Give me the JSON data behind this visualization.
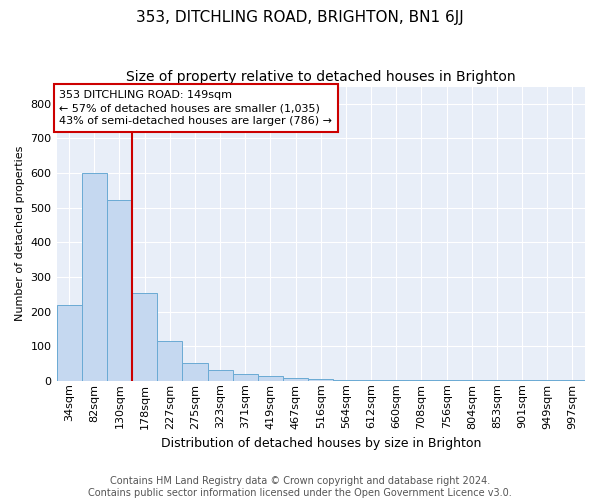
{
  "title": "353, DITCHLING ROAD, BRIGHTON, BN1 6JJ",
  "subtitle": "Size of property relative to detached houses in Brighton",
  "xlabel": "Distribution of detached houses by size in Brighton",
  "ylabel": "Number of detached properties",
  "footer_line1": "Contains HM Land Registry data © Crown copyright and database right 2024.",
  "footer_line2": "Contains public sector information licensed under the Open Government Licence v3.0.",
  "bins": [
    "34sqm",
    "82sqm",
    "130sqm",
    "178sqm",
    "227sqm",
    "275sqm",
    "323sqm",
    "371sqm",
    "419sqm",
    "467sqm",
    "516sqm",
    "564sqm",
    "612sqm",
    "660sqm",
    "708sqm",
    "756sqm",
    "804sqm",
    "853sqm",
    "901sqm",
    "949sqm",
    "997sqm"
  ],
  "bar_heights": [
    218,
    600,
    522,
    255,
    115,
    52,
    32,
    20,
    14,
    8,
    4,
    3,
    3,
    2,
    2,
    1,
    1,
    1,
    1,
    1,
    1
  ],
  "bar_color": "#c5d8f0",
  "bar_edge_color": "#6aaad4",
  "red_line_bin_index": 2,
  "red_line_color": "#cc0000",
  "annotation_line1": "353 DITCHLING ROAD: 149sqm",
  "annotation_line2": "← 57% of detached houses are smaller (1,035)",
  "annotation_line3": "43% of semi-detached houses are larger (786) →",
  "annotation_box_edgecolor": "#cc0000",
  "annotation_box_facecolor": "#ffffff",
  "ylim": [
    0,
    850
  ],
  "yticks": [
    0,
    100,
    200,
    300,
    400,
    500,
    600,
    700,
    800
  ],
  "background_color": "#ffffff",
  "plot_bg_color": "#e8eef8",
  "grid_color": "#ffffff",
  "title_fontsize": 11,
  "subtitle_fontsize": 10,
  "xlabel_fontsize": 9,
  "ylabel_fontsize": 8,
  "tick_fontsize": 8,
  "annotation_fontsize": 8,
  "footer_fontsize": 7
}
